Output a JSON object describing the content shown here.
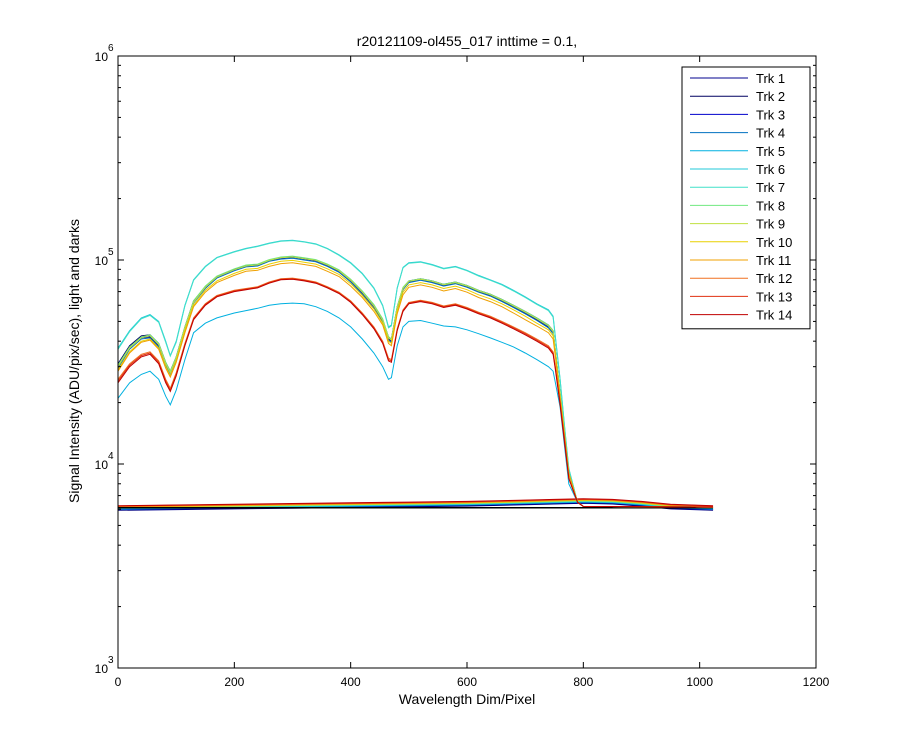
{
  "chart_data": {
    "type": "line",
    "title": "r20121109-ol455_017 inttime = 0.1,",
    "xlabel": "Wavelength Dim/Pixel",
    "ylabel": "Signal Intensity (ADU/pix/sec), light and darks",
    "xlim": [
      0,
      1200
    ],
    "ylim": [
      1000,
      1000000
    ],
    "y_scale": "log",
    "grid": false,
    "legend_position": "top-right",
    "x_ticks": [
      "0",
      "200",
      "400",
      "600",
      "800",
      "1000",
      "1200"
    ],
    "y_ticks": [
      {
        "base": "10",
        "exp": "3"
      },
      {
        "base": "10",
        "exp": "4"
      },
      {
        "base": "10",
        "exp": "5"
      },
      {
        "base": "10",
        "exp": "6"
      }
    ],
    "x": [
      0,
      20,
      40,
      55,
      70,
      82,
      90,
      100,
      115,
      130,
      150,
      170,
      200,
      220,
      240,
      260,
      280,
      300,
      320,
      340,
      360,
      380,
      400,
      420,
      440,
      455,
      465,
      470,
      480,
      490,
      500,
      520,
      540,
      560,
      580,
      600,
      620,
      640,
      660,
      680,
      700,
      720,
      740,
      748,
      752,
      760,
      768,
      775,
      790,
      800
    ],
    "series": [
      {
        "name": "Trk 1",
        "color": "#00008F",
        "values": [
          30000,
          37000,
          41500,
          42000,
          38000,
          31000,
          28000,
          33000,
          46000,
          62000,
          73000,
          82000,
          89000,
          93000,
          94000,
          99000,
          102000,
          103000,
          101000,
          99000,
          94000,
          88000,
          79000,
          69000,
          59000,
          50000,
          41000,
          40000,
          58000,
          72000,
          78000,
          80000,
          78000,
          75000,
          77000,
          74000,
          70000,
          67000,
          63000,
          59000,
          55000,
          51000,
          47000,
          44000,
          35000,
          22000,
          14000,
          9000,
          6500,
          6200
        ]
      },
      {
        "name": "Trk 2",
        "color": "#000060",
        "values": [
          31000,
          38000,
          42500,
          43000,
          39000,
          31500,
          28500,
          33500,
          47000,
          63000,
          74000,
          83000,
          90000,
          94000,
          95000,
          100000,
          103000,
          104000,
          102000,
          100000,
          95000,
          89000,
          80000,
          70000,
          60000,
          51000,
          42000,
          41000,
          59000,
          73000,
          79000,
          81000,
          79000,
          76000,
          78000,
          75000,
          71000,
          68000,
          64000,
          60000,
          56000,
          52000,
          48000,
          45000,
          36000,
          22000,
          14000,
          9000,
          6500,
          6200
        ]
      },
      {
        "name": "Trk 3",
        "color": "#0000CC",
        "values": [
          30500,
          37500,
          42000,
          42500,
          38500,
          31200,
          28200,
          33200,
          46500,
          62500,
          73500,
          82500,
          89500,
          93500,
          94500,
          99500,
          102500,
          103500,
          101500,
          99500,
          94500,
          88500,
          79500,
          69500,
          59500,
          50500,
          41500,
          40500,
          58500,
          72500,
          78500,
          80500,
          78500,
          75500,
          77500,
          74500,
          70500,
          67500,
          63500,
          59500,
          55500,
          51500,
          47500,
          44500,
          35500,
          22000,
          14000,
          9000,
          6500,
          6200
        ]
      },
      {
        "name": "Trk 4",
        "color": "#0070C0",
        "values": [
          29500,
          36500,
          41000,
          41500,
          37500,
          30500,
          27700,
          32700,
          45500,
          61500,
          72500,
          81500,
          88500,
          92500,
          93500,
          98500,
          101000,
          102000,
          100000,
          98000,
          93000,
          87000,
          78000,
          68000,
          58000,
          49500,
          40500,
          39500,
          57500,
          71500,
          77500,
          79500,
          77500,
          74500,
          76500,
          73500,
          69500,
          66500,
          62500,
          58500,
          54500,
          50500,
          46500,
          43500,
          35000,
          22000,
          14000,
          9000,
          6500,
          6200
        ]
      },
      {
        "name": "Trk 5",
        "color": "#00B0E0",
        "values": [
          21000,
          25000,
          27500,
          28500,
          26000,
          21500,
          19500,
          23000,
          32500,
          44000,
          49000,
          52000,
          55000,
          56500,
          58000,
          60000,
          61000,
          61500,
          61000,
          59000,
          56000,
          52000,
          47000,
          41000,
          35000,
          30000,
          26000,
          26500,
          38000,
          47000,
          50000,
          50500,
          49000,
          47500,
          47000,
          45500,
          43500,
          41500,
          39500,
          37500,
          35000,
          32500,
          30000,
          28500,
          25000,
          19000,
          12000,
          8000,
          6500,
          6200
        ]
      },
      {
        "name": "Trk 6",
        "color": "#20C8D8",
        "values": [
          37000,
          45000,
          52000,
          54000,
          50000,
          40000,
          34000,
          40000,
          60000,
          80000,
          93000,
          103000,
          110000,
          114000,
          117000,
          121000,
          124000,
          125000,
          123000,
          120000,
          114000,
          106000,
          97000,
          86000,
          73000,
          60000,
          47000,
          48000,
          73000,
          92000,
          97000,
          98000,
          95000,
          91000,
          93000,
          89000,
          84000,
          80000,
          76000,
          71000,
          66000,
          61000,
          57000,
          53000,
          42000,
          26000,
          15000,
          9500,
          6500,
          6200
        ]
      },
      {
        "name": "Trk 7",
        "color": "#40E0C8",
        "values": [
          36500,
          44500,
          51500,
          53500,
          49500,
          39500,
          33800,
          39500,
          59500,
          79500,
          92500,
          102500,
          109500,
          113500,
          116500,
          120500,
          123500,
          124500,
          122500,
          119500,
          113500,
          105500,
          96500,
          85500,
          72500,
          59500,
          46500,
          47500,
          72500,
          91500,
          96500,
          97500,
          94500,
          90500,
          92500,
          88500,
          83500,
          79500,
          75500,
          70500,
          65500,
          60500,
          56500,
          52500,
          41500,
          26000,
          15000,
          9500,
          6500,
          6200
        ]
      },
      {
        "name": "Trk 8",
        "color": "#70E880",
        "values": [
          30500,
          37500,
          42000,
          43000,
          39000,
          31500,
          28500,
          33500,
          47000,
          63000,
          74500,
          83500,
          90500,
          94500,
          95500,
          100500,
          103500,
          104500,
          102500,
          100500,
          95500,
          89500,
          80500,
          70500,
          60500,
          51500,
          42000,
          41000,
          59000,
          73500,
          79000,
          81000,
          79000,
          76000,
          78000,
          75000,
          71000,
          68000,
          64000,
          60000,
          56000,
          52000,
          48000,
          45000,
          36000,
          22500,
          14000,
          9000,
          6500,
          6200
        ]
      },
      {
        "name": "Trk 9",
        "color": "#C0E040",
        "values": [
          30000,
          37000,
          41500,
          42500,
          38500,
          31000,
          28000,
          33000,
          46500,
          62000,
          73500,
          82500,
          89500,
          93500,
          94500,
          99500,
          102500,
          103500,
          101500,
          99500,
          94500,
          88500,
          79500,
          69500,
          59500,
          50500,
          41500,
          40500,
          58500,
          72500,
          78500,
          80500,
          78500,
          75500,
          77500,
          74500,
          70500,
          67500,
          63500,
          59500,
          55500,
          51500,
          47500,
          44500,
          35500,
          22000,
          14000,
          9000,
          6500,
          6200
        ]
      },
      {
        "name": "Trk 10",
        "color": "#E8D000",
        "values": [
          29000,
          35500,
          40000,
          41000,
          37000,
          30000,
          27000,
          32000,
          45000,
          60000,
          71000,
          79000,
          86000,
          90000,
          91000,
          95500,
          98500,
          99500,
          97500,
          95500,
          90500,
          85000,
          76500,
          67000,
          57500,
          49000,
          40000,
          39000,
          56000,
          69500,
          75500,
          77500,
          75500,
          72500,
          74500,
          71500,
          67500,
          64500,
          61000,
          57000,
          53000,
          49000,
          45500,
          42500,
          34500,
          21500,
          13500,
          9000,
          6500,
          6200
        ]
      },
      {
        "name": "Trk 11",
        "color": "#F0A000",
        "values": [
          28500,
          35000,
          39500,
          40500,
          36500,
          29500,
          26700,
          31500,
          44000,
          59000,
          69500,
          77500,
          84000,
          88000,
          89000,
          93000,
          96000,
          97000,
          95000,
          93000,
          88000,
          83000,
          74500,
          65500,
          56000,
          48000,
          39000,
          38000,
          54500,
          67500,
          73500,
          75500,
          73500,
          70500,
          72500,
          69500,
          65500,
          62500,
          59000,
          55000,
          51000,
          47500,
          44000,
          41000,
          33500,
          21000,
          13500,
          9000,
          6500,
          6200
        ]
      },
      {
        "name": "Trk 12",
        "color": "#F07020",
        "values": [
          26000,
          31000,
          34500,
          35500,
          32000,
          26000,
          23500,
          28000,
          39000,
          52000,
          61000,
          67000,
          71000,
          72500,
          74000,
          78000,
          81000,
          81500,
          80000,
          78000,
          74000,
          69500,
          63000,
          55000,
          47000,
          40000,
          33000,
          32500,
          46000,
          57000,
          62000,
          63500,
          62000,
          59500,
          61000,
          58500,
          55500,
          53000,
          50000,
          47000,
          44000,
          41000,
          38000,
          35500,
          30000,
          20000,
          13000,
          8500,
          6500,
          6200
        ]
      },
      {
        "name": "Trk 13",
        "color": "#E03010",
        "values": [
          25500,
          30500,
          34000,
          35000,
          31500,
          25500,
          23000,
          27500,
          38500,
          51500,
          60500,
          66500,
          70500,
          72000,
          73500,
          77500,
          80500,
          81000,
          79500,
          77500,
          73500,
          69000,
          62500,
          54500,
          46500,
          39500,
          32500,
          32000,
          45500,
          56500,
          61500,
          63000,
          61500,
          59000,
          60500,
          58000,
          55000,
          52500,
          49500,
          46500,
          43500,
          40500,
          37500,
          35000,
          29500,
          20000,
          13000,
          8500,
          6500,
          6200
        ]
      },
      {
        "name": "Trk 14",
        "color": "#C00000",
        "values": [
          25000,
          30000,
          33500,
          34500,
          31000,
          25000,
          22700,
          27000,
          38000,
          51000,
          60000,
          66000,
          70000,
          71500,
          73000,
          77000,
          80000,
          80500,
          79000,
          77000,
          73000,
          68500,
          62000,
          54000,
          46000,
          39000,
          32000,
          31500,
          45000,
          56000,
          61000,
          62500,
          61000,
          58500,
          60000,
          57500,
          54500,
          52000,
          49000,
          46000,
          43000,
          40000,
          37000,
          34500,
          29000,
          19500,
          12500,
          8500,
          6500,
          6200
        ]
      }
    ],
    "dark_series": {
      "x": [
        0,
        100,
        200,
        300,
        400,
        500,
        600,
        700,
        750,
        800,
        850,
        900,
        950,
        1023
      ],
      "values": [
        6100,
        6150,
        6200,
        6250,
        6300,
        6350,
        6400,
        6500,
        6550,
        6600,
        6550,
        6400,
        6200,
        6100
      ]
    }
  }
}
